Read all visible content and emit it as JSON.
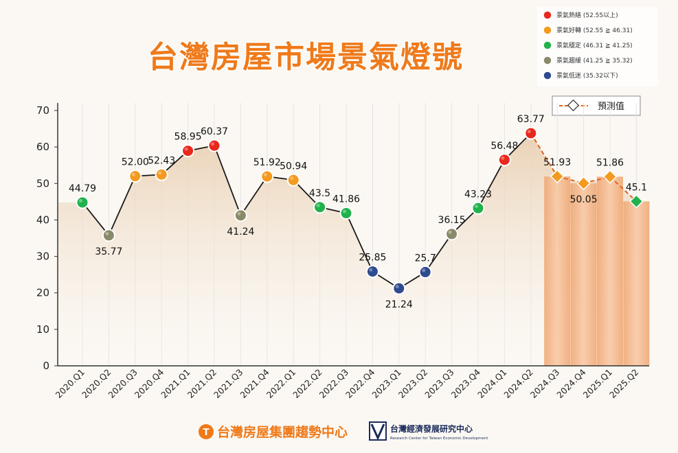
{
  "title": "台灣房屋市場景氣燈號",
  "legend": [
    {
      "label": "景氣熱絡 (52.55以上)",
      "color": "#e8281c"
    },
    {
      "label": "景氣好轉 (52.55 ≧ 46.31)",
      "color": "#f39a1f"
    },
    {
      "label": "景氣穩定 (46.31 ≧ 41.25)",
      "color": "#22b24c"
    },
    {
      "label": "景氣趨緩 (41.25 ≧ 35.32)",
      "color": "#8a8a6a"
    },
    {
      "label": "景氣低迷 (35.32以下)",
      "color": "#2f4b8f"
    }
  ],
  "forecast_legend": "預測值",
  "footer": {
    "left": "台灣房屋集團趨勢中心",
    "right": "台灣經濟發展研究中心",
    "right_sub": "Research Center for Taiwan Economic Development"
  },
  "colors": {
    "hot": "#e8281c",
    "good": "#f39a1f",
    "stable": "#22b24c",
    "slow": "#8a8a6a",
    "low": "#2f4b8f",
    "forecast_bar": "#f5b78a",
    "forecast_line": "#e0611c",
    "area": "#ecd5bd",
    "title": "#ef7a1a"
  },
  "chart_data": {
    "type": "line",
    "categories": [
      "2020.Q1",
      "2020.Q2",
      "2020.Q3",
      "2020.Q4",
      "2021.Q1",
      "2021.Q2",
      "2021.Q3",
      "2021.Q4",
      "2022.Q1",
      "2022.Q2",
      "2022.Q3",
      "2022.Q4",
      "2023.Q1",
      "2023.Q2",
      "2023.Q3",
      "2023.Q4",
      "2024.Q1",
      "2024.Q2",
      "2024.Q3",
      "2024.Q4",
      "2025.Q1",
      "2025.Q2"
    ],
    "values": [
      44.79,
      35.77,
      52.0,
      52.43,
      58.95,
      60.37,
      41.24,
      51.92,
      50.94,
      43.5,
      41.86,
      25.85,
      21.24,
      25.7,
      36.15,
      43.23,
      56.48,
      63.77,
      51.93,
      50.05,
      51.86,
      45.1
    ],
    "value_labels": [
      "44.79",
      "35.77",
      "52.00",
      "52.43",
      "58.95",
      "60.37",
      "41.24",
      "51.92",
      "50.94",
      "43.5",
      "41.86",
      "25.85",
      "21.24",
      "25.7",
      "36.15",
      "43.23",
      "56.48",
      "63.77",
      "51.93",
      "50.05",
      "51.86",
      "45.1"
    ],
    "status": [
      "stable",
      "slow",
      "good",
      "good",
      "hot",
      "hot",
      "slow",
      "good",
      "good",
      "stable",
      "stable",
      "low",
      "low",
      "low",
      "slow",
      "stable",
      "hot",
      "hot",
      "good",
      "good",
      "good",
      "stable"
    ],
    "forecast": [
      false,
      false,
      false,
      false,
      false,
      false,
      false,
      false,
      false,
      false,
      false,
      false,
      false,
      false,
      false,
      false,
      false,
      false,
      true,
      true,
      true,
      true
    ],
    "yticks": [
      "0",
      "10",
      "20",
      "30",
      "40",
      "50",
      "60",
      "70"
    ],
    "ylim": [
      0,
      70
    ],
    "xlabel": "",
    "ylabel": "",
    "grid": "vertical"
  }
}
